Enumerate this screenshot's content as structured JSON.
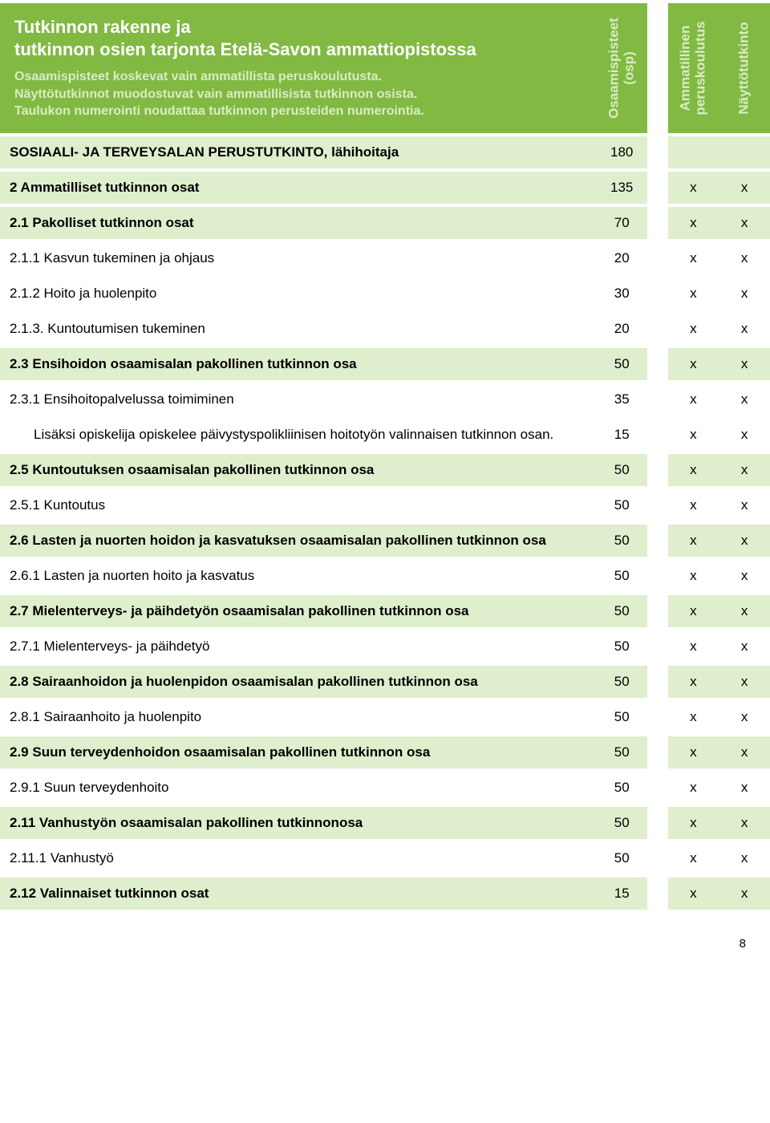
{
  "colors": {
    "header_bg": "#81b943",
    "header_text": "#ffffff",
    "header_subtext": "#d9ecc4",
    "section_bg": "#dfeecc",
    "row_bg": "#ffffff",
    "body_text": "#000000"
  },
  "header": {
    "title_line1": "Tutkinnon rakenne ja",
    "title_line2": "tutkinnon osien tarjonta Etelä-Savon ammattiopistossa",
    "sub_line1": "Osaamispisteet koskevat vain ammatillista peruskoulutusta.",
    "sub_line2": "Näyttötutkinnot muodostuvat vain ammatillisista tutkinnon osista.",
    "sub_line3": "Taulukon numerointi noudattaa tutkinnon perusteiden numerointia.",
    "col1": "Osaamispisteet",
    "col1b": "(osp)",
    "col2a": "Ammatillinen",
    "col2b": "peruskoulutus",
    "col3": "Näyttötutkinto"
  },
  "rows": [
    {
      "type": "section",
      "label": "SOSIAALI- JA TERVEYSALAN PERUSTUTKINTO, lähihoitaja",
      "osp": "180",
      "c2": "",
      "c3": ""
    },
    {
      "type": "section",
      "label": "2 Ammatilliset tutkinnon osat",
      "osp": "135",
      "c2": "x",
      "c3": "x"
    },
    {
      "type": "section",
      "label": "2.1 Pakolliset tutkinnon osat",
      "osp": "70",
      "c2": "x",
      "c3": "x"
    },
    {
      "type": "row",
      "label": "2.1.1 Kasvun tukeminen ja ohjaus",
      "osp": "20",
      "c2": "x",
      "c3": "x"
    },
    {
      "type": "row",
      "label": "2.1.2 Hoito ja huolenpito",
      "osp": "30",
      "c2": "x",
      "c3": "x"
    },
    {
      "type": "row",
      "label": "2.1.3. Kuntoutumisen tukeminen",
      "osp": "20",
      "c2": "x",
      "c3": "x"
    },
    {
      "type": "section",
      "label": "2.3 Ensihoidon osaamisalan pakollinen tutkinnon osa",
      "osp": "50",
      "c2": "x",
      "c3": "x"
    },
    {
      "type": "row",
      "label": "2.3.1 Ensihoitopalvelussa toimiminen",
      "osp": "35",
      "c2": "x",
      "c3": "x"
    },
    {
      "type": "row",
      "indent": true,
      "label": "Lisäksi opiskelija opiskelee päivystyspolikliinisen hoitotyön valinnaisen tutkinnon osan.",
      "osp": "15",
      "c2": "x",
      "c3": "x"
    },
    {
      "type": "section",
      "label": "2.5 Kuntoutuksen osaamisalan pakollinen tutkinnon osa",
      "osp": "50",
      "c2": "x",
      "c3": "x"
    },
    {
      "type": "row",
      "label": "2.5.1 Kuntoutus",
      "osp": "50",
      "c2": "x",
      "c3": "x"
    },
    {
      "type": "section",
      "label": "2.6 Lasten ja nuorten hoidon ja kasvatuksen osaamisalan pakollinen tutkinnon osa",
      "osp": "50",
      "c2": "x",
      "c3": "x"
    },
    {
      "type": "row",
      "label": "2.6.1 Lasten ja nuorten hoito ja kasvatus",
      "osp": "50",
      "c2": "x",
      "c3": "x"
    },
    {
      "type": "section",
      "label": "2.7 Mielenterveys- ja päihdetyön osaamisalan pakollinen tutkinnon osa",
      "osp": "50",
      "c2": "x",
      "c3": "x"
    },
    {
      "type": "row",
      "label": "2.7.1 Mielenterveys- ja päihdetyö",
      "osp": "50",
      "c2": "x",
      "c3": "x"
    },
    {
      "type": "section",
      "label": "2.8 Sairaanhoidon ja huolenpidon osaamisalan pakollinen tutkinnon osa",
      "osp": "50",
      "c2": "x",
      "c3": "x"
    },
    {
      "type": "row",
      "label": "2.8.1 Sairaanhoito ja huolenpito",
      "osp": "50",
      "c2": "x",
      "c3": "x"
    },
    {
      "type": "section",
      "label": "2.9 Suun terveydenhoidon osaamisalan pakollinen tutkinnon osa",
      "osp": "50",
      "c2": "x",
      "c3": "x"
    },
    {
      "type": "row",
      "label": "2.9.1 Suun terveydenhoito",
      "osp": "50",
      "c2": "x",
      "c3": "x"
    },
    {
      "type": "section",
      "label": "2.11 Vanhustyön osaamisalan pakollinen tutkinnonosa",
      "osp": "50",
      "c2": "x",
      "c3": "x"
    },
    {
      "type": "row",
      "label": "2.11.1 Vanhustyö",
      "osp": "50",
      "c2": "x",
      "c3": "x"
    },
    {
      "type": "section",
      "label": "2.12 Valinnaiset tutkinnon osat",
      "osp": "15",
      "c2": "x",
      "c3": "x"
    }
  ],
  "pagenum": "8"
}
